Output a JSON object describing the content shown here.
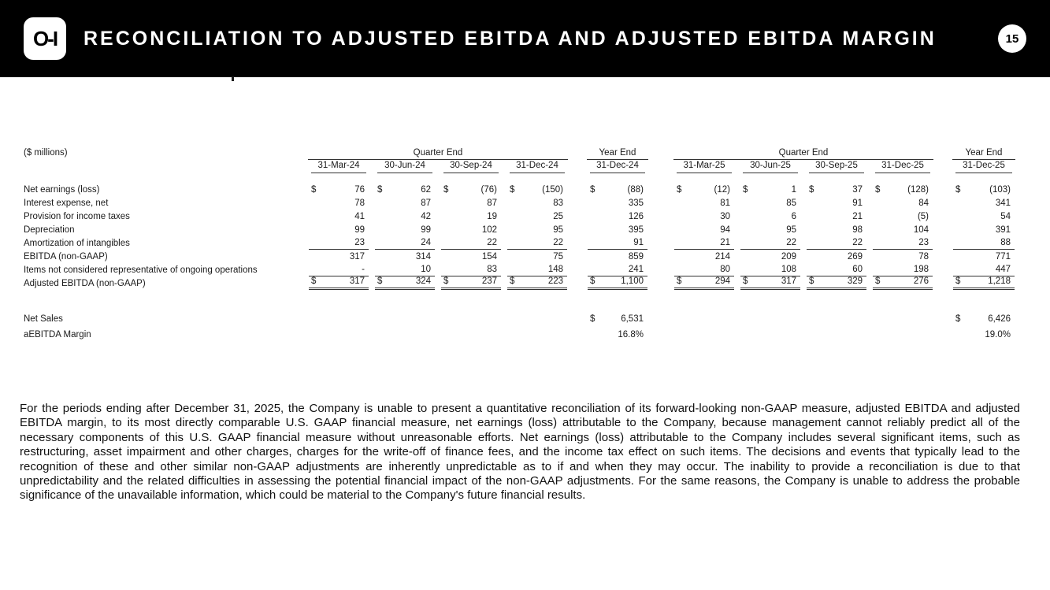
{
  "header": {
    "logo_text": "O-I",
    "title": "RECONCILIATION TO ADJUSTED EBITDA AND ADJUSTED EBITDA MARGIN",
    "page_number": "15"
  },
  "table": {
    "units_label": "($ millions)",
    "groups": [
      {
        "label": "Quarter End"
      },
      {
        "label": "Year End"
      },
      {
        "label": "Quarter End"
      },
      {
        "label": "Year End"
      }
    ],
    "columns": [
      "31-Mar-24",
      "30-Jun-24",
      "30-Sep-24",
      "31-Dec-24",
      "31-Dec-24",
      "31-Mar-25",
      "30-Jun-25",
      "30-Sep-25",
      "31-Dec-25",
      "31-Dec-25"
    ],
    "rows": [
      {
        "label": "Net earnings (loss)",
        "dollar": true,
        "underline": "none",
        "values": [
          "76",
          "62",
          "(76)",
          "(150)",
          "(88)",
          "(12)",
          "1",
          "37",
          "(128)",
          "(103)"
        ]
      },
      {
        "label": "Interest expense, net",
        "dollar": false,
        "underline": "none",
        "values": [
          "78",
          "87",
          "87",
          "83",
          "335",
          "81",
          "85",
          "91",
          "84",
          "341"
        ]
      },
      {
        "label": "Provision for income taxes",
        "dollar": false,
        "underline": "none",
        "values": [
          "41",
          "42",
          "19",
          "25",
          "126",
          "30",
          "6",
          "21",
          "(5)",
          "54"
        ]
      },
      {
        "label": "Depreciation",
        "dollar": false,
        "underline": "none",
        "values": [
          "99",
          "99",
          "102",
          "95",
          "395",
          "94",
          "95",
          "98",
          "104",
          "391"
        ]
      },
      {
        "label": "Amortization of intangibles",
        "dollar": false,
        "underline": "single",
        "values": [
          "23",
          "24",
          "22",
          "22",
          "91",
          "21",
          "22",
          "22",
          "23",
          "88"
        ]
      },
      {
        "label": "EBITDA (non-GAAP)",
        "dollar": false,
        "underline": "none",
        "values": [
          "317",
          "314",
          "154",
          "75",
          "859",
          "214",
          "209",
          "269",
          "78",
          "771"
        ]
      },
      {
        "label": "Items not considered representative of ongoing operations",
        "dollar": false,
        "underline": "single",
        "values": [
          "-",
          "10",
          "83",
          "148",
          "241",
          "80",
          "108",
          "60",
          "198",
          "447"
        ]
      },
      {
        "label": "Adjusted EBITDA (non-GAAP)",
        "dollar": true,
        "underline": "double",
        "values": [
          "317",
          "324",
          "237",
          "223",
          "1,100",
          "294",
          "317",
          "329",
          "276",
          "1,218"
        ]
      }
    ],
    "summary_rows": [
      {
        "label": "Net Sales",
        "dollar": true,
        "underline": "none",
        "values": [
          "",
          "",
          "",
          "",
          "6,531",
          "",
          "",
          "",
          "",
          "6,426"
        ]
      },
      {
        "label": "aEBITDA Margin",
        "dollar": false,
        "underline": "none",
        "values": [
          "",
          "",
          "",
          "",
          "16.8%",
          "",
          "",
          "",
          "",
          "19.0%"
        ]
      }
    ]
  },
  "footnote": "For the periods ending after December 31, 2025, the Company is unable to present a quantitative reconciliation of its forward-looking non-GAAP measure, adjusted EBITDA and adjusted EBITDA margin, to its most directly comparable U.S. GAAP financial measure, net earnings (loss) attributable to the Company, because management cannot reliably predict all of the necessary components of this U.S. GAAP financial measure without unreasonable efforts. Net earnings (loss) attributable to the Company includes several significant items, such as restructuring, asset impairment and other charges, charges for the write-off of finance fees, and the income tax effect on such items.  The decisions and events that typically lead to the recognition of these and other similar non-GAAP adjustments are inherently unpredictable as to if and when they may occur.  The inability to provide a reconciliation is due to that unpredictability and the related difficulties in assessing the potential financial impact of the non-GAAP adjustments.  For the same reasons, the Company is unable to address the probable significance of the unavailable information, which could be material to the Company's future financial results."
}
